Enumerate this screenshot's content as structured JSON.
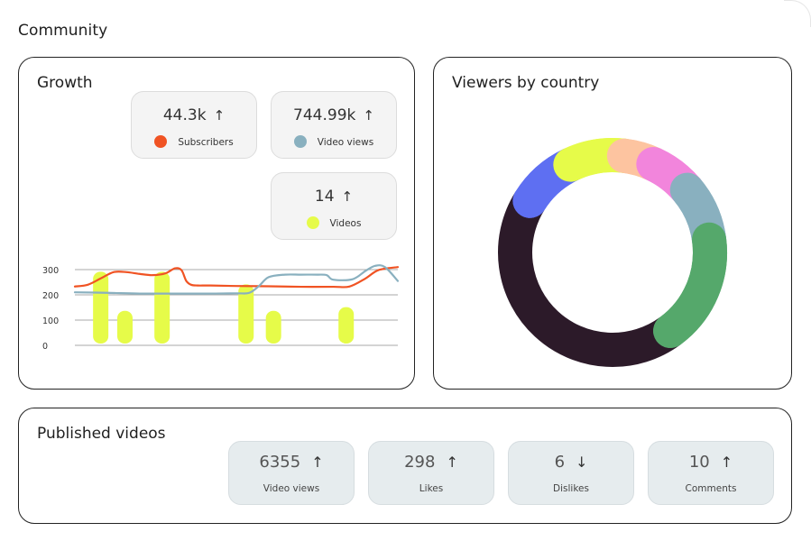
{
  "page": {
    "title": "Community"
  },
  "growth": {
    "title": "Growth",
    "stats": [
      {
        "value": "44.3k",
        "arrow": "↑",
        "label": "Subscribers",
        "color": "#f05323"
      },
      {
        "value": "744.99k",
        "arrow": "↑",
        "label": "Video views",
        "color": "#89b0bf"
      },
      {
        "value": "14",
        "arrow": "↑",
        "label": "Videos",
        "color": "#e6fb49"
      }
    ]
  },
  "chart_data": {
    "type": "bar",
    "title": "Growth",
    "y_ticks": [
      "300",
      "200",
      "100",
      "0"
    ],
    "ylim": [
      0,
      300
    ],
    "bar_color": "#e6fb49",
    "bars": [
      {
        "x": 0.08,
        "value": 270
      },
      {
        "x": 0.155,
        "value": 115
      },
      {
        "x": 0.27,
        "value": 270
      },
      {
        "x": 0.53,
        "value": 220
      },
      {
        "x": 0.615,
        "value": 115
      },
      {
        "x": 0.84,
        "value": 130
      }
    ],
    "series": [
      {
        "name": "Subscribers",
        "color": "#f05323",
        "x": [
          0,
          0.04,
          0.08,
          0.12,
          0.16,
          0.2,
          0.24,
          0.28,
          0.31,
          0.33,
          0.345,
          0.36,
          0.38,
          0.42,
          0.5,
          0.6,
          0.7,
          0.8,
          0.85,
          0.9,
          0.94,
          1.0
        ],
        "y": [
          233,
          240,
          265,
          290,
          290,
          283,
          278,
          285,
          305,
          298,
          255,
          240,
          237,
          237,
          235,
          234,
          232,
          232,
          233,
          265,
          298,
          310
        ]
      },
      {
        "name": "Video views",
        "color": "#89b0bf",
        "x": [
          0,
          0.1,
          0.2,
          0.3,
          0.4,
          0.5,
          0.54,
          0.57,
          0.6,
          0.65,
          0.7,
          0.75,
          0.78,
          0.8,
          0.86,
          0.9,
          0.93,
          0.96,
          1.0
        ],
        "y": [
          210,
          208,
          205,
          205,
          205,
          206,
          208,
          235,
          270,
          280,
          280,
          280,
          278,
          260,
          262,
          295,
          315,
          310,
          255
        ]
      }
    ]
  },
  "viewers": {
    "title": "Viewers by country",
    "chart_data": {
      "type": "pie",
      "slices": [
        {
          "value": 9,
          "color": "#5e6ff2"
        },
        {
          "value": 9,
          "color": "#e6fb49"
        },
        {
          "value": 5,
          "color": "#fdc4a0"
        },
        {
          "value": 7,
          "color": "#f285dc"
        },
        {
          "value": 9,
          "color": "#89b0bf"
        },
        {
          "value": 17,
          "color": "#55a86b"
        },
        {
          "value": 44,
          "color": "#2c1a29"
        }
      ]
    }
  },
  "published": {
    "title": "Published videos",
    "stats": [
      {
        "value": "6355",
        "arrow": "↑",
        "label": "Video views"
      },
      {
        "value": "298",
        "arrow": "↑",
        "label": "Likes"
      },
      {
        "value": "6",
        "arrow": "↓",
        "label": "Dislikes"
      },
      {
        "value": "10",
        "arrow": "↑",
        "label": "Comments"
      }
    ]
  }
}
